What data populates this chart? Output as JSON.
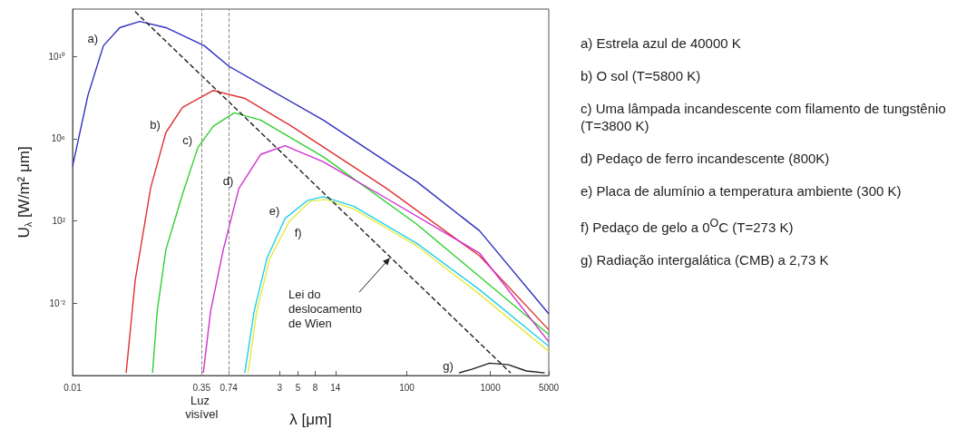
{
  "chart_data": {
    "type": "line",
    "xlabel": "λ [μm]",
    "ylabel": "U$_{λ}$ [W/m² μm]",
    "log": "xy",
    "xlim": [
      0.01,
      5000
    ],
    "xticks": [
      0.01,
      0.35,
      0.74,
      3,
      5,
      8,
      14,
      100,
      1000,
      5000
    ],
    "ylim": [
      3e-06,
      2000000000000.0
    ],
    "yticks": [
      {
        "value": 10000000000.0,
        "label": "10¹⁰"
      },
      {
        "value": 1000000.0,
        "label": "10⁶"
      },
      {
        "value": 100,
        "label": "10²"
      },
      {
        "value": 0.01,
        "label": "10⁻²"
      }
    ],
    "series": [
      {
        "name": "a)",
        "color": "#3030c0",
        "x": [
          0.01,
          0.0153,
          0.0234,
          0.0367,
          0.0637,
          0.131,
          0.377,
          0.741,
          10,
          132,
          741,
          5000
        ],
        "values": [
          45000.0,
          130000000.0,
          33000000000.0,
          250000000000.0,
          500000000000.0,
          250000000000.0,
          33000000000.0,
          3300000000.0,
          8000000.0,
          8000.0,
          33,
          0.003
        ]
      },
      {
        "name": "b)",
        "color": "#e03030",
        "x": [
          0.0438,
          0.0562,
          0.0861,
          0.131,
          0.207,
          0.484,
          1.16,
          4.17,
          56,
          741,
          5000
        ],
        "values": [
          4e-06,
          0.13,
          4100.0,
          2000000.0,
          33000000.0,
          220000000.0,
          90000000.0,
          4000000.0,
          4000.0,
          2,
          0.0005
        ]
      },
      {
        "name": "c)",
        "color": "#30d030",
        "x": [
          0.0906,
          0.103,
          0.131,
          0.207,
          0.316,
          0.484,
          0.861,
          1.78,
          10,
          132,
          5000
        ],
        "values": [
          4e-06,
          0.004,
          4,
          2000.0,
          370000.0,
          4000000.0,
          18000000.0,
          8000000.0,
          130000.0,
          68,
          0.0003
        ]
      },
      {
        "name": "d)",
        "color": "#d030d0",
        "x": [
          0.367,
          0.449,
          0.637,
          0.977,
          1.78,
          3.49,
          10,
          56,
          741,
          5000
        ],
        "values": [
          4e-06,
          0.004,
          4,
          3700.0,
          170000.0,
          450000.0,
          74000.0,
          1300.0,
          2.7,
          0.00013
        ]
      },
      {
        "name": "e)",
        "color": "#20d0e8",
        "x": [
          1.15,
          1.49,
          2.12,
          3.49,
          6.53,
          10,
          23.4,
          132,
          741,
          5000
        ],
        "values": [
          4e-06,
          0.004,
          1.5,
          130,
          1000.0,
          1500.0,
          500,
          8,
          0.045,
          8e-05
        ]
      },
      {
        "name": "f)",
        "color": "#e8e840",
        "x": [
          1.26,
          1.6,
          2.3,
          3.9,
          7,
          10.7,
          23.4,
          132,
          741,
          5000
        ],
        "values": [
          4e-06,
          0.004,
          1.5,
          91,
          900,
          1100.0,
          370,
          6,
          0.027,
          4.5e-05
        ]
      },
      {
        "name": "g)",
        "color": "#202020",
        "x": [
          420,
          600,
          980,
          1650,
          2700,
          4470
        ],
        "values": [
          4e-06,
          6e-06,
          1.2e-05,
          1e-05,
          5e-06,
          4e-06
        ]
      },
      {
        "color": "#202020",
        "line_style": "dashed",
        "x": [
          0.056,
          1750
        ],
        "values": [
          1500000000000.0,
          4e-06
        ]
      }
    ],
    "ref_lines": [
      {
        "axis": "x",
        "value": 0.35,
        "label": "Luz visível",
        "color": "#888888",
        "line_style": "dashed"
      },
      {
        "axis": "x",
        "value": 0.74,
        "color": "#888888",
        "line_style": "dashed"
      }
    ],
    "annotations": [
      {
        "text": "Lei do deslocamento de Wien",
        "x": 63,
        "y": 1.6
      },
      "a) Estrela azul de 40000 K",
      "b) O sol (T=5800 K)",
      "c) Uma lâmpada incandescente com filamento de tungstênio (T=3800 K)",
      "d) Pedaço de ferro incandescente (800K)",
      "e) Placa de alumínio a temperatura ambiente (300 K)",
      "f) Pedaço de gelo a 0$^{O}$C (T=273 K)",
      "g) Radiação intergalática (CMB) a 2,73 K"
    ]
  }
}
